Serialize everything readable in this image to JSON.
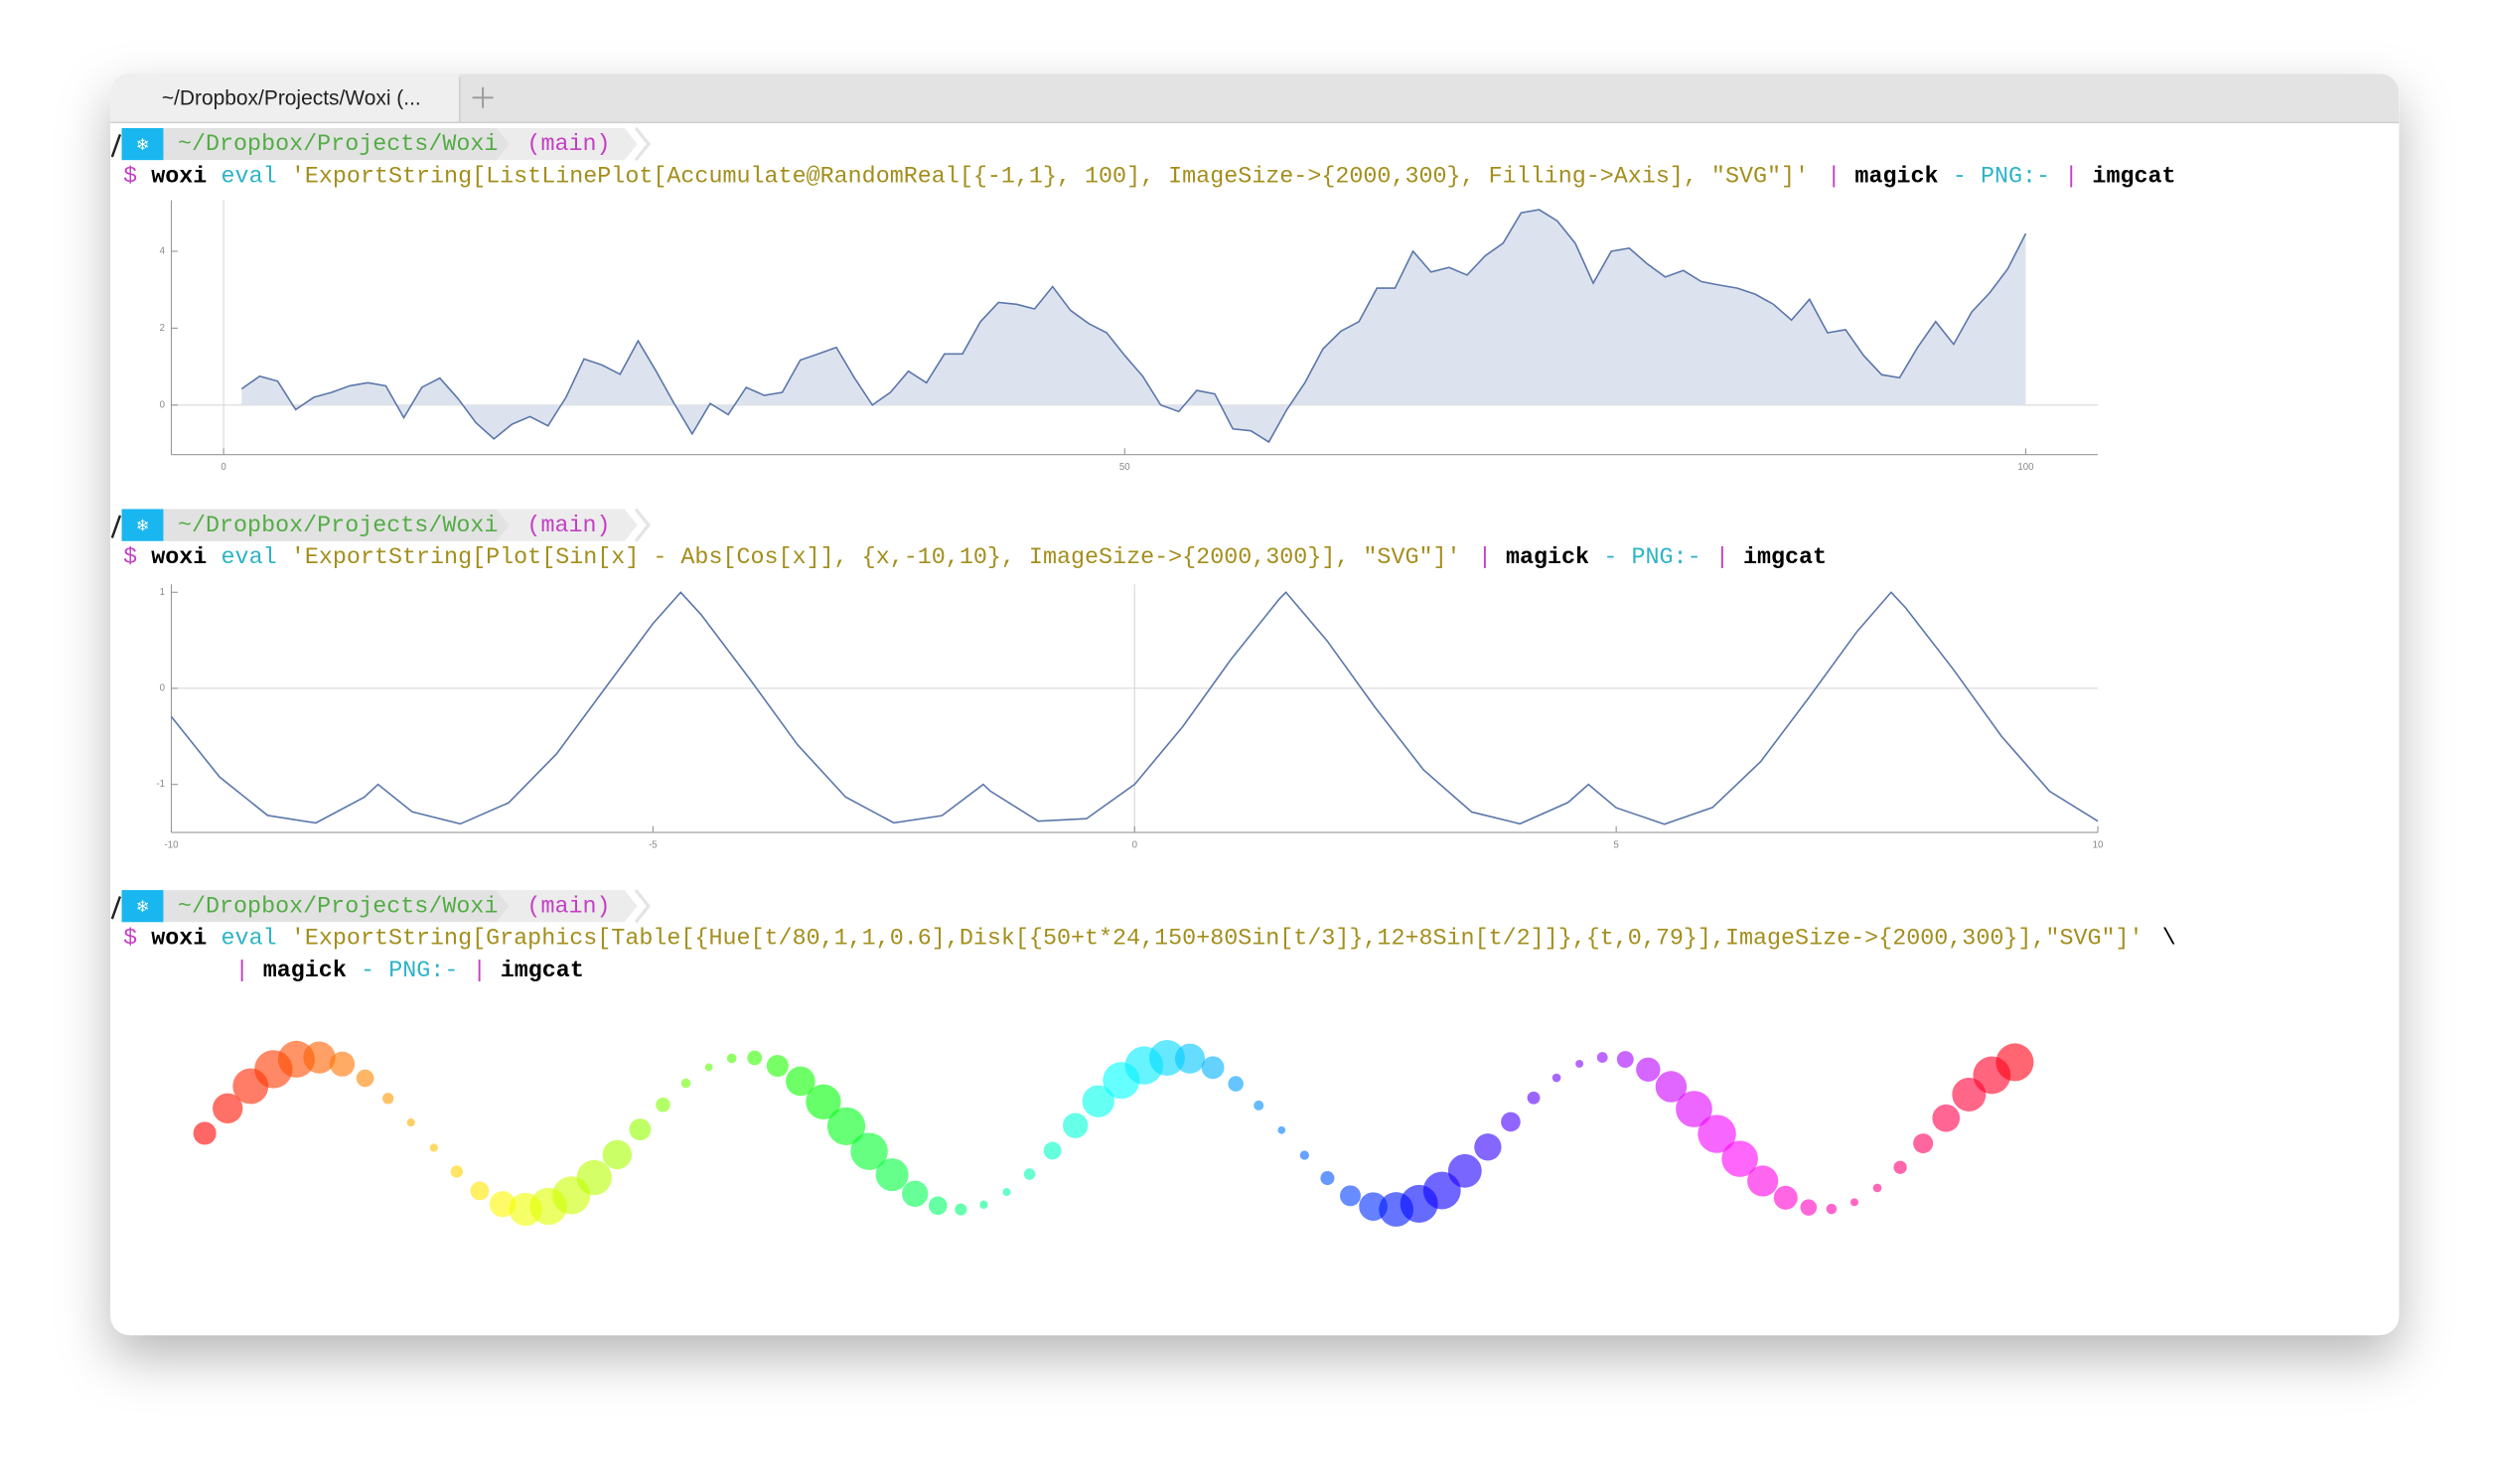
{
  "tab": {
    "title": "~/Dropbox/Projects/Woxi (..."
  },
  "blocks": [
    {
      "prompt": {
        "icon": "❄",
        "path": "~/Dropbox/Projects/Woxi",
        "branch": "(main)"
      },
      "lines": [
        [
          {
            "text": "$",
            "color": "#c43fc4"
          },
          {
            "text": "woxi",
            "color": "#000000",
            "bold": true
          },
          {
            "text": "eval",
            "color": "#2db3c6"
          },
          {
            "text": "'ExportString[ListLinePlot[Accumulate@RandomReal[{-1,1}, 100], ImageSize->{2000,300}, Filling->Axis], \"SVG\"]'",
            "color": "#a38e1c"
          },
          {
            "text": "|",
            "color": "#c43fc4"
          },
          {
            "text": "magick",
            "color": "#000000",
            "bold": true
          },
          {
            "text": "-",
            "color": "#2db3c6"
          },
          {
            "text": "PNG:-",
            "color": "#2db3c6"
          },
          {
            "text": "|",
            "color": "#c43fc4"
          },
          {
            "text": "imgcat",
            "color": "#000000",
            "bold": true
          }
        ]
      ]
    },
    {
      "prompt": {
        "icon": "❄",
        "path": "~/Dropbox/Projects/Woxi",
        "branch": "(main)"
      },
      "lines": [
        [
          {
            "text": "$",
            "color": "#c43fc4"
          },
          {
            "text": "woxi",
            "color": "#000000",
            "bold": true
          },
          {
            "text": "eval",
            "color": "#2db3c6"
          },
          {
            "text": "'ExportString[Plot[Sin[x] - Abs[Cos[x]], {x,-10,10}, ImageSize->{2000,300}], \"SVG\"]'",
            "color": "#a38e1c"
          },
          {
            "text": "|",
            "color": "#c43fc4"
          },
          {
            "text": "magick",
            "color": "#000000",
            "bold": true
          },
          {
            "text": "-",
            "color": "#2db3c6"
          },
          {
            "text": "PNG:-",
            "color": "#2db3c6"
          },
          {
            "text": "|",
            "color": "#c43fc4"
          },
          {
            "text": "imgcat",
            "color": "#000000",
            "bold": true
          }
        ]
      ]
    },
    {
      "prompt": {
        "icon": "❄",
        "path": "~/Dropbox/Projects/Woxi",
        "branch": "(main)"
      },
      "lines": [
        [
          {
            "text": "$",
            "color": "#c43fc4"
          },
          {
            "text": "woxi",
            "color": "#000000",
            "bold": true
          },
          {
            "text": "eval",
            "color": "#2db3c6"
          },
          {
            "text": "'ExportString[Graphics[Table[{Hue[t/80,1,1,0.6],Disk[{50+t*24,150+80Sin[t/3]},12+8Sin[t/2]]},{t,0,79}],ImageSize->{2000,300}],\"SVG\"]'",
            "color": "#a38e1c"
          },
          {
            "text": "\\",
            "color": "#000000"
          }
        ],
        [
          {
            "text": "|",
            "color": "#c43fc4"
          },
          {
            "text": "magick",
            "color": "#000000",
            "bold": true
          },
          {
            "text": "-",
            "color": "#2db3c6"
          },
          {
            "text": "PNG:-",
            "color": "#2db3c6"
          },
          {
            "text": "|",
            "color": "#c43fc4"
          },
          {
            "text": "imgcat",
            "color": "#000000",
            "bold": true
          }
        ]
      ]
    }
  ],
  "chart_data": [
    {
      "type": "area",
      "color": "#5b77aa",
      "fill": "#dde3ee",
      "x": [
        1,
        2,
        3,
        4,
        5,
        6,
        7,
        8,
        9,
        10,
        11,
        12,
        13,
        14,
        15,
        16,
        17,
        18,
        19,
        20,
        21,
        22,
        23,
        24,
        25,
        26,
        27,
        28,
        29,
        30,
        31,
        32,
        33,
        34,
        35,
        36,
        37,
        38,
        39,
        40,
        41,
        42,
        43,
        44,
        45,
        46,
        47,
        48,
        49,
        50,
        51,
        52,
        53,
        54,
        55,
        56,
        57,
        58,
        59,
        60,
        61,
        62,
        63,
        64,
        65,
        66,
        67,
        68,
        69,
        70,
        71,
        72,
        73,
        74,
        75,
        76,
        77,
        78,
        79,
        80,
        81,
        82,
        83,
        84,
        85,
        86,
        87,
        88,
        89,
        90,
        91,
        92,
        93,
        94,
        95,
        96,
        97,
        98,
        99,
        100
      ],
      "values": [
        0.42,
        0.75,
        0.62,
        -0.12,
        0.2,
        0.33,
        0.5,
        0.58,
        0.5,
        -0.33,
        0.46,
        0.7,
        0.17,
        -0.46,
        -0.88,
        -0.5,
        -0.3,
        -0.54,
        0.2,
        1.2,
        1.04,
        0.8,
        1.67,
        0.88,
        0.04,
        -0.75,
        0.04,
        -0.25,
        0.46,
        0.25,
        0.33,
        1.17,
        1.33,
        1.5,
        0.71,
        0,
        0.33,
        0.88,
        0.58,
        1.33,
        1.33,
        2.17,
        2.67,
        2.62,
        2.5,
        3.08,
        2.46,
        2.12,
        1.88,
        1.29,
        0.75,
        0,
        -0.17,
        0.38,
        0.29,
        -0.62,
        -0.67,
        -0.96,
        -0.12,
        0.58,
        1.46,
        1.92,
        2.17,
        3.04,
        3.04,
        4,
        3.46,
        3.58,
        3.38,
        3.88,
        4.21,
        5,
        5.08,
        4.79,
        4.21,
        3.17,
        4,
        4.08,
        3.67,
        3.33,
        3.5,
        3.21,
        3.12,
        3.04,
        2.88,
        2.62,
        2.21,
        2.75,
        1.88,
        1.96,
        1.29,
        0.79,
        0.71,
        1.5,
        2.17,
        1.58,
        2.42,
        2.92,
        3.54,
        4.46
      ],
      "xlim": [
        -2.9,
        104
      ],
      "ylim": [
        -1.29,
        5.33
      ],
      "xticks": [
        0,
        50,
        100
      ],
      "yticks": [
        0,
        2,
        4
      ]
    },
    {
      "type": "line",
      "color": "#5b77aa",
      "x": [
        -10,
        -9.5,
        -9,
        -8.5,
        -8,
        -7.854,
        -7.5,
        -7,
        -6.5,
        -6,
        -5.5,
        -5,
        -4.712,
        -4.5,
        -4,
        -3.5,
        -3,
        -2.5,
        -2,
        -1.571,
        -1.5,
        -1,
        -0.5,
        0,
        0.5,
        1,
        1.5,
        1.571,
        2,
        2.5,
        3,
        3.5,
        4,
        4.5,
        4.712,
        5,
        5.5,
        6,
        6.5,
        7,
        7.5,
        7.854,
        8,
        8.5,
        9,
        9.5,
        10
      ],
      "values": [
        -0.295,
        -0.922,
        -1.323,
        -1.401,
        -1.135,
        -1,
        -1.285,
        -1.411,
        -1.192,
        -0.681,
        -0.003,
        0.675,
        1,
        0.767,
        0.103,
        -0.586,
        -1.131,
        -1.4,
        -1.325,
        -1,
        -1.068,
        -1.382,
        -1.357,
        -1,
        -0.398,
        0.301,
        0.927,
        1,
        0.493,
        -0.203,
        -0.849,
        -1.287,
        -1.41,
        -1.188,
        -1,
        -1.243,
        -1.414,
        -1.24,
        -0.762,
        -0.097,
        0.591,
        1,
        0.844,
        0.197,
        -0.499,
        -1.072,
        -1.383
      ],
      "xlim": [
        -10,
        10
      ],
      "ylim": [
        -1.5,
        1.083
      ],
      "xticks": [
        -10,
        -5,
        0,
        5,
        10
      ],
      "yticks": [
        -1,
        0,
        1
      ]
    },
    {
      "type": "bubble",
      "opacity": 0.6,
      "x": [
        50,
        74,
        98,
        122,
        146,
        170,
        194,
        218,
        242,
        266,
        290,
        314,
        338,
        362,
        386,
        410,
        434,
        458,
        482,
        506,
        530,
        554,
        578,
        602,
        626,
        650,
        674,
        698,
        722,
        746,
        770,
        794,
        818,
        842,
        866,
        890,
        914,
        938,
        962,
        986,
        1010,
        1034,
        1058,
        1082,
        1106,
        1130,
        1154,
        1178,
        1202,
        1226,
        1250,
        1274,
        1298,
        1322,
        1346,
        1370,
        1394,
        1418,
        1442,
        1466,
        1490,
        1514,
        1538,
        1562,
        1586,
        1610,
        1634,
        1658,
        1682,
        1706,
        1730,
        1754,
        1778,
        1802,
        1826,
        1850,
        1874,
        1898,
        1922,
        1946
      ],
      "values": [
        150,
        176.2,
        199.5,
        217.3,
        227.8,
        229.6,
        222.7,
        207.8,
        186.6,
        161.3,
        134.8,
        109.8,
        89.5,
        75.6,
        70.1,
        73.3,
        84.8,
        103.5,
        127.6,
        154,
        179.9,
        202.6,
        219.4,
        228.7,
        229.2,
        220.8,
        204.7,
        183,
        157.4,
        131,
        106.5,
        86.5,
        74,
        70,
        75,
        88.3,
        107.1,
        131.7,
        158.1,
        183.6,
        205.5,
        221.3,
        229.2,
        228.5,
        219,
        202,
        179.2,
        153.3,
        127,
        102.9,
        84.4,
        73.1,
        70.1,
        75.9,
        89.9,
        110.5,
        135.5,
        162,
        187.2,
        208.3,
        223,
        229.7,
        227.6,
        216.9,
        198.9,
        175.4,
        149.3,
        123.2,
        99.9,
        82.3,
        72.1,
        70.5,
        77.6,
        92.6,
        114.2,
        139.4,
        165.9,
        190.7,
        211,
        224.6
      ],
      "sizes": [
        12,
        15.8,
        18.7,
        20,
        19.3,
        16.8,
        13.1,
        9.2,
        5.9,
        4.2,
        4.3,
        6.4,
        9.8,
        13.7,
        17.3,
        19.5,
        19.9,
        18.4,
        15.3,
        11.4,
        7.6,
        5,
        4,
        5,
        7.7,
        11.5,
        15.4,
        18.4,
        19.9,
        19.5,
        17.2,
        13.7,
        9.7,
        6.3,
        4.3,
        4.2,
        6,
        9.3,
        13.2,
        16.8,
        19.3,
        20,
        18.7,
        15.7,
        11.9,
        8.1,
        5.2,
        4,
        4.8,
        7.3,
        10.9,
        14.9,
        18.1,
        19.8,
        19.7,
        17.6,
        14.2,
        10.2,
        6.7,
        4.5,
        4.1,
        5.6,
        8.8,
        12.7,
        16.4,
        19.1,
        20,
        19,
        16.2,
        12.5,
        8.6,
        5.5,
        4.1,
        4.5,
        6.9,
        10.4,
        14.4,
        17.7,
        19.7,
        19.8
      ],
      "colors": [
        "hsl(0,100%,50%)",
        "hsl(4.5,100%,50%)",
        "hsl(9,100%,50%)",
        "hsl(13.5,100%,50%)",
        "hsl(18,100%,50%)",
        "hsl(22.5,100%,50%)",
        "hsl(27,100%,50%)",
        "hsl(31.5,100%,50%)",
        "hsl(36,100%,50%)",
        "hsl(40.5,100%,50%)",
        "hsl(45,100%,50%)",
        "hsl(49.5,100%,50%)",
        "hsl(54,100%,50%)",
        "hsl(58.5,100%,50%)",
        "hsl(63,100%,50%)",
        "hsl(67.5,100%,50%)",
        "hsl(72,100%,50%)",
        "hsl(76.5,100%,50%)",
        "hsl(81,100%,50%)",
        "hsl(85.5,100%,50%)",
        "hsl(90,100%,50%)",
        "hsl(94.5,100%,50%)",
        "hsl(99,100%,50%)",
        "hsl(103.5,100%,50%)",
        "hsl(108,100%,50%)",
        "hsl(112.5,100%,50%)",
        "hsl(117,100%,50%)",
        "hsl(121.5,100%,50%)",
        "hsl(126,100%,50%)",
        "hsl(130.5,100%,50%)",
        "hsl(135,100%,50%)",
        "hsl(139.5,100%,50%)",
        "hsl(144,100%,50%)",
        "hsl(148.5,100%,50%)",
        "hsl(153,100%,50%)",
        "hsl(157.5,100%,50%)",
        "hsl(162,100%,50%)",
        "hsl(166.5,100%,50%)",
        "hsl(171,100%,50%)",
        "hsl(175.5,100%,50%)",
        "hsl(180,100%,50%)",
        "hsl(184.5,100%,50%)",
        "hsl(189,100%,50%)",
        "hsl(193.5,100%,50%)",
        "hsl(198,100%,50%)",
        "hsl(202.5,100%,50%)",
        "hsl(207,100%,50%)",
        "hsl(211.5,100%,50%)",
        "hsl(216,100%,50%)",
        "hsl(220.5,100%,50%)",
        "hsl(225,100%,50%)",
        "hsl(229.5,100%,50%)",
        "hsl(234,100%,50%)",
        "hsl(238.5,100%,50%)",
        "hsl(243,100%,50%)",
        "hsl(247.5,100%,50%)",
        "hsl(252,100%,50%)",
        "hsl(256.5,100%,50%)",
        "hsl(261,100%,50%)",
        "hsl(265.5,100%,50%)",
        "hsl(270,100%,50%)",
        "hsl(274.5,100%,50%)",
        "hsl(279,100%,50%)",
        "hsl(283.5,100%,50%)",
        "hsl(288,100%,50%)",
        "hsl(292.5,100%,50%)",
        "hsl(297,100%,50%)",
        "hsl(301.5,100%,50%)",
        "hsl(306,100%,50%)",
        "hsl(310.5,100%,50%)",
        "hsl(315,100%,50%)",
        "hsl(319.5,100%,50%)",
        "hsl(324,100%,50%)",
        "hsl(328.5,100%,50%)",
        "hsl(333,100%,50%)",
        "hsl(337.5,100%,50%)",
        "hsl(342,100%,50%)",
        "hsl(346.5,100%,50%)",
        "hsl(351,100%,50%)",
        "hsl(355.5,100%,50%)"
      ],
      "xlim": [
        15,
        2033
      ],
      "ylim": [
        12,
        281
      ]
    }
  ]
}
